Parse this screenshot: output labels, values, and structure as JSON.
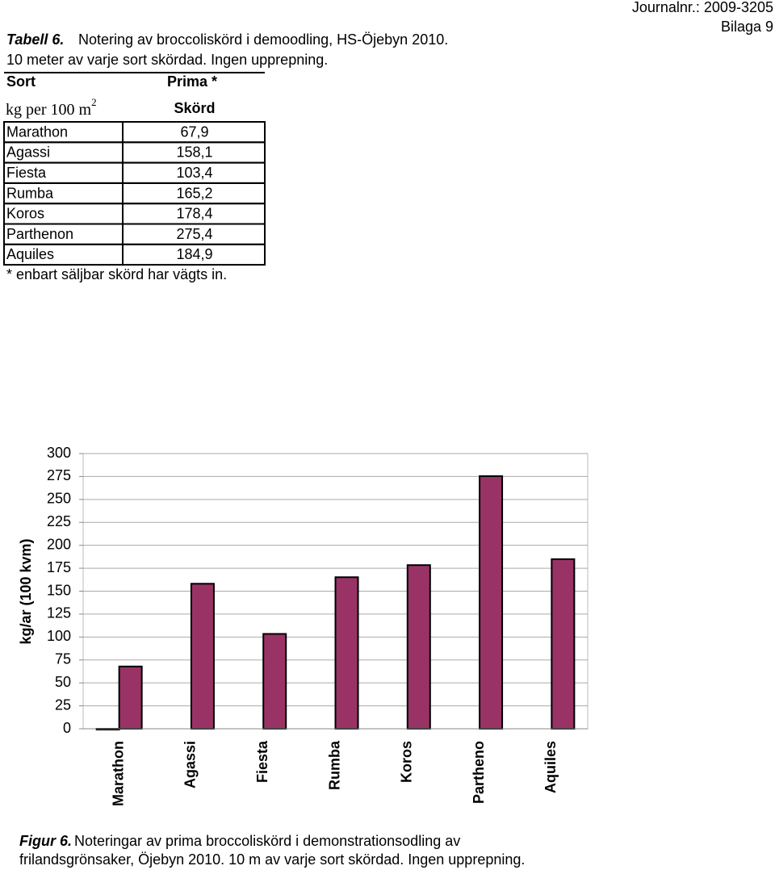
{
  "header": {
    "journal": "Journalnr.: 2009-3205",
    "appendix": "Bilaga 9"
  },
  "table_caption": {
    "label": "Tabell 6.",
    "lines": [
      "Notering av broccoliskörd  i demoodling, HS-Öjebyn 2010.",
      "10 meter av varje sort skördad. Ingen upprepning."
    ]
  },
  "table": {
    "header": [
      "Sort",
      "Prima *"
    ],
    "unit": "kg per 100 m",
    "unit_sup": "2",
    "column": "Skörd",
    "rows": [
      [
        "Marathon",
        "67,9"
      ],
      [
        "Agassi",
        "158,1"
      ],
      [
        "Fiesta",
        "103,4"
      ],
      [
        "Rumba",
        "165,2"
      ],
      [
        "Koros",
        "178,4"
      ],
      [
        "Parthenon",
        "275,4"
      ],
      [
        "Aquiles",
        "184,9"
      ]
    ],
    "note": "* enbart säljbar skörd har vägts in."
  },
  "chart_data": {
    "type": "bar",
    "y_label": "kg/ar (100 kvm)",
    "categories": [
      "Marathon",
      "Agassi",
      "Fiesta",
      "Rumba",
      "Koros",
      "Partheno",
      "Aquiles"
    ],
    "series": [
      {
        "color": "#1a1a66",
        "values": [
          0,
          null,
          null,
          null,
          null,
          null,
          null
        ]
      },
      {
        "color": "#993366",
        "values": [
          67.9,
          158.1,
          103.4,
          165.2,
          178.4,
          275.4,
          184.9
        ]
      }
    ],
    "ylim": [
      0,
      300
    ],
    "yticks": [
      0,
      25,
      50,
      75,
      100,
      125,
      150,
      175,
      200,
      225,
      250,
      275,
      300
    ],
    "grid": true
  },
  "figure_caption": {
    "label": "Figur 6.",
    "lines": [
      "Noteringar av prima broccoliskörd i demonstrationsodling av",
      "frilandsgrönsaker, Öjebyn 2010. 10 m av varje sort skördad. Ingen upprepning."
    ]
  }
}
